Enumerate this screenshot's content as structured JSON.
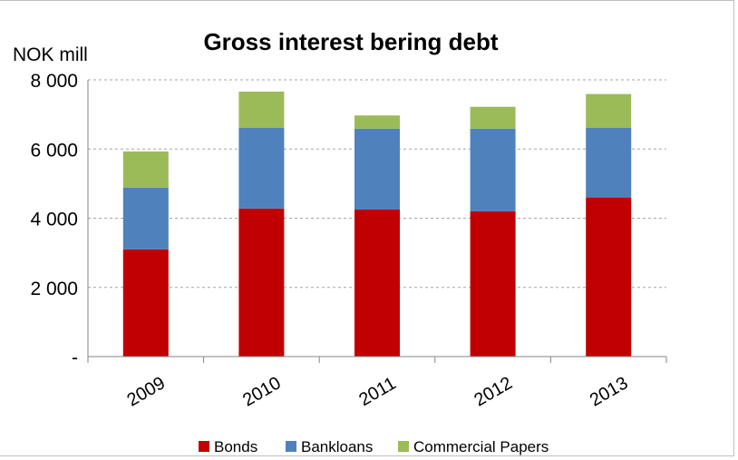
{
  "chart_data": {
    "type": "bar",
    "stacked": true,
    "title": "Gross interest bering debt",
    "ylabel": "NOK mill",
    "xlabel": "",
    "categories": [
      "2009",
      "2010",
      "2011",
      "2012",
      "2013"
    ],
    "ylim": [
      0,
      8000
    ],
    "yticks": [
      0,
      2000,
      4000,
      6000,
      8000
    ],
    "ytick_labels": [
      "-",
      "2 000",
      "4 000",
      "6 000",
      "8 000"
    ],
    "grid": true,
    "legend_position": "bottom",
    "series": [
      {
        "name": "Bonds",
        "color": "#c00000",
        "values": [
          3100,
          4280,
          4250,
          4200,
          4600
        ]
      },
      {
        "name": "Bankloans",
        "color": "#4f81bd",
        "values": [
          1780,
          2330,
          2340,
          2390,
          2010
        ]
      },
      {
        "name": "Commercial Papers",
        "color": "#9bbb59",
        "values": [
          1050,
          1050,
          380,
          630,
          980
        ]
      }
    ]
  }
}
